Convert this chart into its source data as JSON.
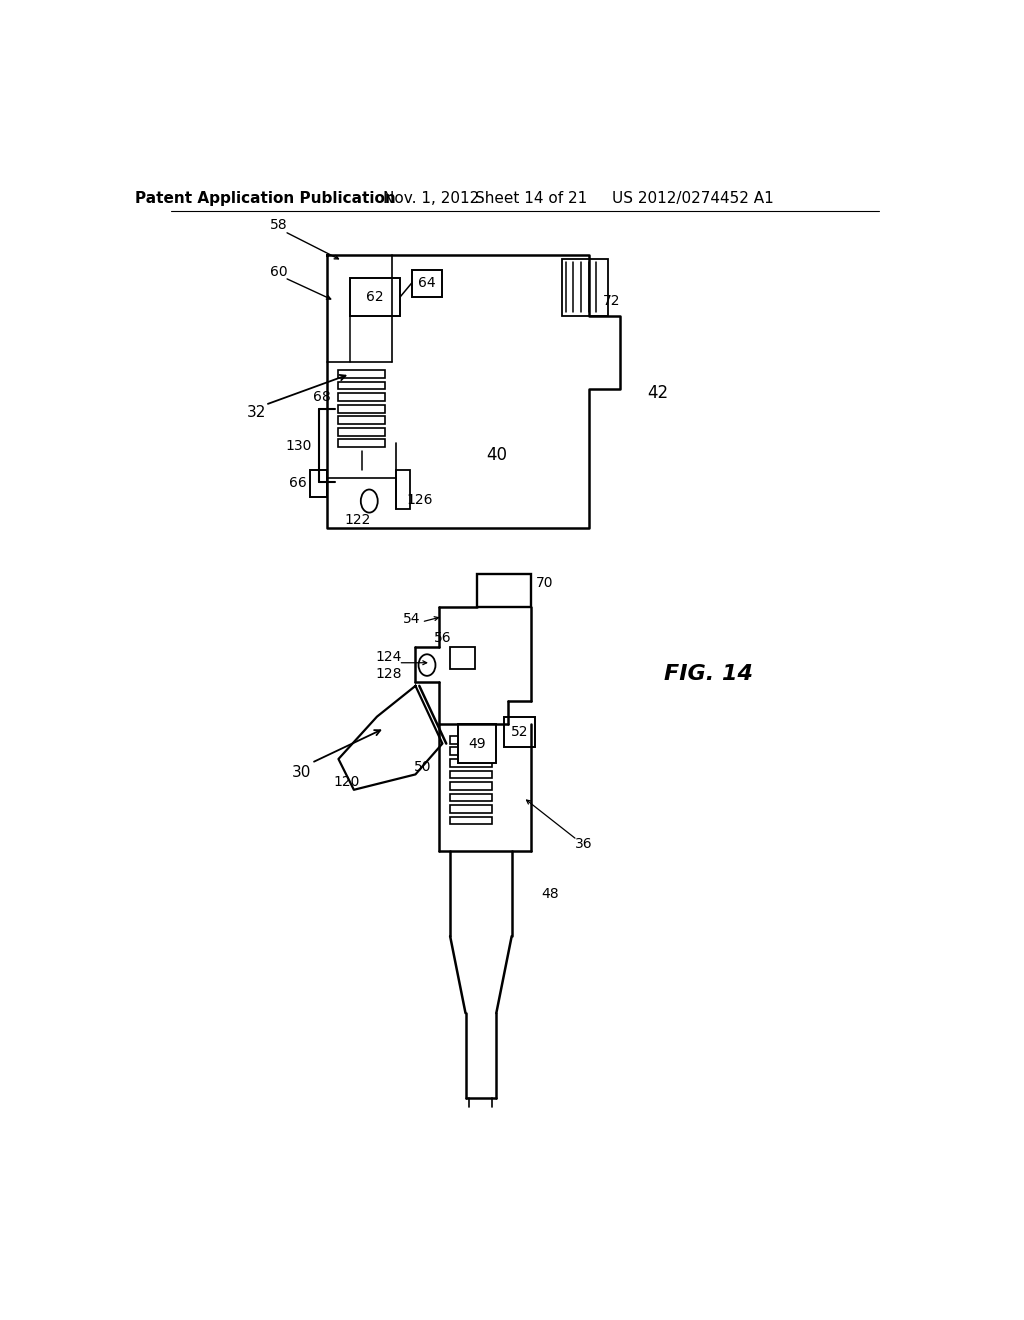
{
  "bg_color": "#ffffff",
  "header_text": "Patent Application Publication",
  "header_date": "Nov. 1, 2012",
  "header_sheet": "Sheet 14 of 21",
  "header_patent": "US 2012/0274452 A1",
  "fig_label": "FIG. 14"
}
